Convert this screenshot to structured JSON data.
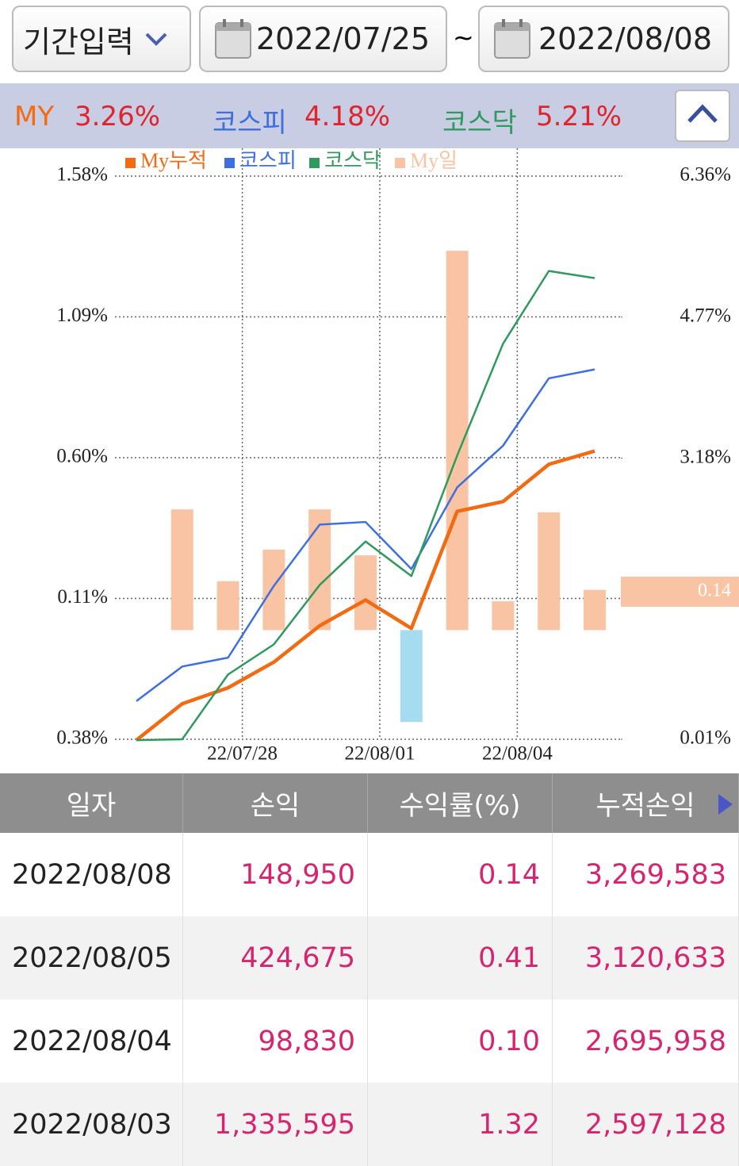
{
  "header": {
    "period_button": "기간입력",
    "start_date": "2022/07/25",
    "separator": "~",
    "end_date": "2022/08/08"
  },
  "summary": [
    {
      "name": "MY",
      "value": "3.26%"
    },
    {
      "name": "코스피",
      "value": "4.18%"
    },
    {
      "name": "코스닥",
      "value": "5.21%"
    }
  ],
  "chart_data": {
    "type": "combo",
    "categories": [
      null,
      null,
      "22/07/28",
      null,
      null,
      "22/08/01",
      null,
      null,
      "22/08/04",
      null,
      null
    ],
    "ylim": [
      -0.38,
      1.58
    ],
    "yticks": [
      {
        "value": -0.38,
        "label": "0.38%"
      },
      {
        "value": 0.11,
        "label": "0.11%"
      },
      {
        "value": 0.6,
        "label": "0.60%"
      },
      {
        "value": 1.09,
        "label": "1.09%"
      },
      {
        "value": 1.58,
        "label": "1.58%"
      }
    ],
    "y2lim": [
      0.01,
      6.36
    ],
    "y2ticks": [
      {
        "value": 0.01,
        "label": "0.01%"
      },
      {
        "value": 3.18,
        "label": "3.18%"
      },
      {
        "value": 4.77,
        "label": "4.77%"
      },
      {
        "value": 6.36,
        "label": "6.36%"
      }
    ],
    "grid": true,
    "series": [
      {
        "name": "My누적",
        "type": "line",
        "axis": "y2",
        "color": "#f26a12",
        "values": [
          0,
          0.41,
          0.59,
          0.88,
          1.29,
          1.58,
          1.26,
          2.58,
          2.69,
          3.11,
          3.26
        ]
      },
      {
        "name": "코스피",
        "type": "line",
        "axis": "y2",
        "color": "#3d6fe0",
        "values": [
          0.44,
          0.83,
          0.93,
          1.74,
          2.43,
          2.46,
          1.93,
          2.85,
          3.32,
          4.08,
          4.18
        ]
      },
      {
        "name": "코스닥",
        "type": "line",
        "axis": "y2",
        "color": "#2f9a5e",
        "values": [
          0,
          0.01,
          0.74,
          1.08,
          1.75,
          2.24,
          1.85,
          3.21,
          4.47,
          5.29,
          5.21
        ]
      },
      {
        "name": "My일",
        "type": "bar",
        "color": "#f8c4a4",
        "negative_color": "#a6dcef",
        "values": [
          null,
          0.42,
          0.17,
          0.28,
          0.42,
          0.26,
          -0.32,
          1.32,
          0.1,
          0.41,
          0.14
        ]
      }
    ]
  },
  "table": {
    "headers": [
      "일자",
      "손익",
      "수익률(%)",
      "누적손익"
    ],
    "rows": [
      [
        "2022/08/08",
        "148,950",
        "0.14",
        "3,269,583"
      ],
      [
        "2022/08/05",
        "424,675",
        "0.41",
        "3,120,633"
      ],
      [
        "2022/08/04",
        "98,830",
        "0.10",
        "2,695,958"
      ],
      [
        "2022/08/03",
        "1,335,595",
        "1.32",
        "2,597,128"
      ]
    ]
  }
}
